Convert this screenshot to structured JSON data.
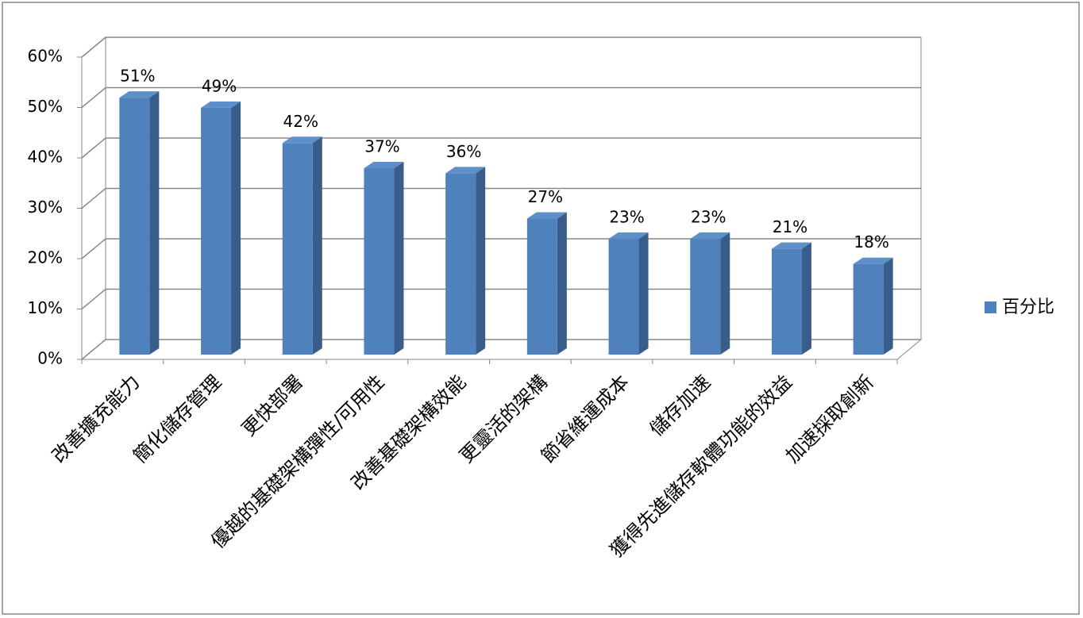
{
  "chart_data": {
    "type": "bar",
    "categories": [
      "改善擴充能力",
      "簡化儲存管理",
      "更快部署",
      "優越的基礎架構彈性/可用性",
      "改善基礎架構效能",
      "更靈活的架構",
      "節省維運成本",
      "儲存加速",
      "獲得先進儲存軟體功能的效益",
      "加速採取創新"
    ],
    "series": [
      {
        "name": "百分比",
        "color": "#4f81bd",
        "values": [
          51,
          49,
          42,
          37,
          36,
          27,
          23,
          23,
          21,
          18
        ],
        "value_labels": [
          "51%",
          "49%",
          "42%",
          "37%",
          "36%",
          "27%",
          "23%",
          "23%",
          "21%",
          "18%"
        ]
      }
    ],
    "ylim": [
      0,
      60
    ],
    "yticks": [
      {
        "value": 0,
        "label": "0%"
      },
      {
        "value": 10,
        "label": "10%"
      },
      {
        "value": 20,
        "label": "20%"
      },
      {
        "value": 30,
        "label": "30%"
      },
      {
        "value": 40,
        "label": "40%"
      },
      {
        "value": 50,
        "label": "50%"
      },
      {
        "value": 60,
        "label": "60%"
      }
    ],
    "grid": true,
    "legend": "right"
  }
}
